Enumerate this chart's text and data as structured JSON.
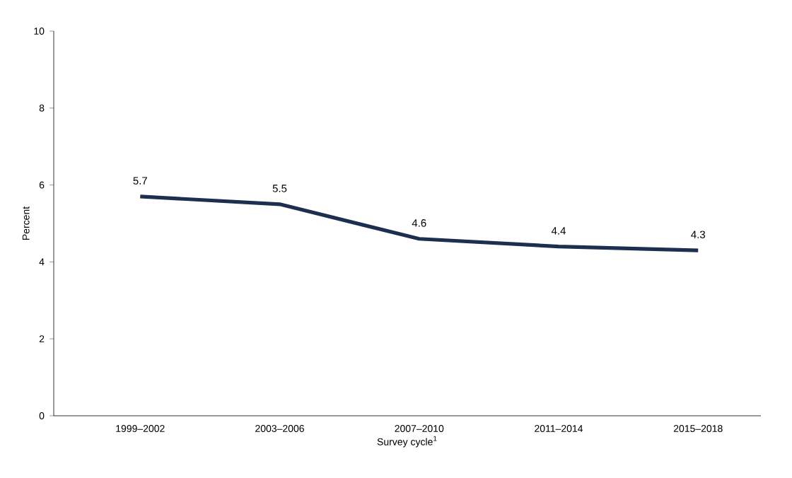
{
  "chart_data": {
    "type": "line",
    "xlabel": "Survey cycle$^{1}$",
    "ylabel": "Percent",
    "categories": [
      "1999–2002",
      "2003–2006",
      "2007–2010",
      "2011–2014",
      "2015–2018"
    ],
    "series": [
      {
        "color": "#1c2f4f",
        "values": [
          5.7,
          5.5,
          4.6,
          4.4,
          4.3
        ]
      }
    ],
    "ylim": [
      0,
      10
    ],
    "yticks": [
      0,
      2,
      4,
      6,
      8,
      10
    ],
    "data_labels": true,
    "grid": false,
    "marker": "none",
    "line_style": "solid"
  }
}
